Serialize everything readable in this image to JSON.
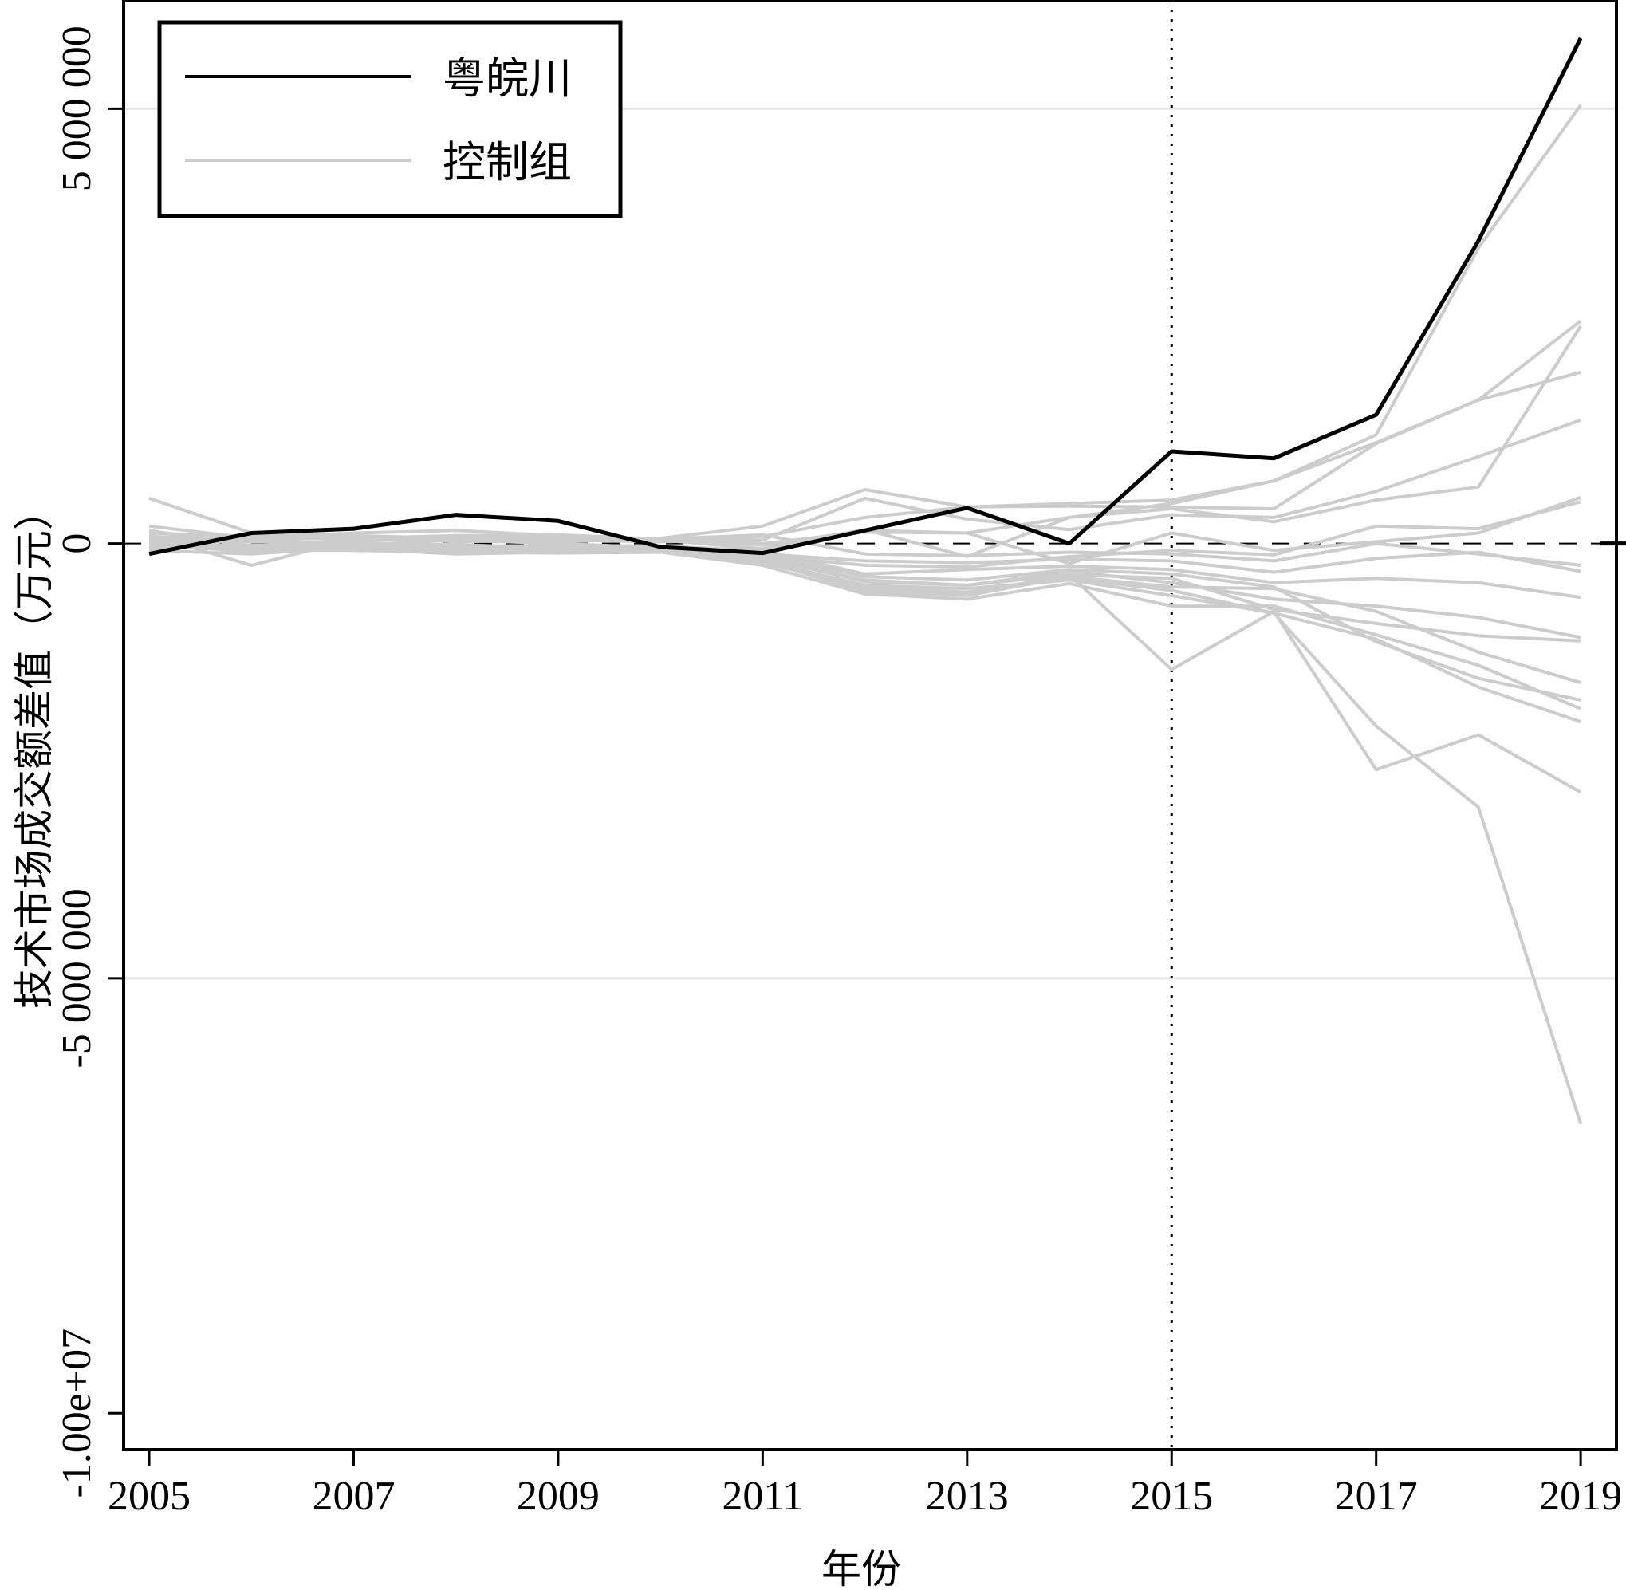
{
  "chart_data": {
    "type": "line",
    "xlabel": "年份",
    "ylabel": "技术市场成交额差值（万元）",
    "x_ticks": [
      "2005",
      "2007",
      "2009",
      "2011",
      "2013",
      "2015",
      "2017",
      "2019"
    ],
    "y_ticks": [
      {
        "value": 5000000,
        "label": "5 000 000"
      },
      {
        "value": 0,
        "label": "0"
      },
      {
        "value": -5000000,
        "label": "-5 000 000"
      },
      {
        "value": -10000000,
        "label": "-1.00e+07"
      }
    ],
    "xlim": [
      2004.75,
      2019.35
    ],
    "ylim": [
      -10420000,
      6250000
    ],
    "grid_y": [
      5000000,
      -5000000
    ],
    "reference_line_y": 0,
    "vertical_line_x": 2015,
    "legend": {
      "placement": "top-left",
      "entries": [
        {
          "label": "粤皖川",
          "color": "#000000"
        },
        {
          "label": "控制组",
          "color": "#cccccc"
        }
      ]
    },
    "x": [
      2005,
      2006,
      2007,
      2008,
      2009,
      2010,
      2011,
      2012,
      2013,
      2014,
      2015,
      2016,
      2017,
      2018,
      2019
    ],
    "series": [
      {
        "name": "粤皖川",
        "role": "treated",
        "values": [
          -120000,
          120000,
          170000,
          330000,
          260000,
          -40000,
          -110000,
          150000,
          410000,
          0,
          1060000,
          980000,
          1480000,
          3480000,
          5810000
        ]
      },
      {
        "name": "控制组",
        "role": "control",
        "values": [
          520000,
          120000,
          90000,
          60000,
          40000,
          60000,
          200000,
          620000,
          420000,
          460000,
          500000,
          720000,
          1250000,
          3400000,
          5040000
        ]
      },
      {
        "name": "控制组",
        "role": "control",
        "values": [
          100000,
          -250000,
          50000,
          80000,
          60000,
          30000,
          80000,
          300000,
          420000,
          430000,
          420000,
          400000,
          1150000,
          1650000,
          2560000
        ]
      },
      {
        "name": "控制组",
        "role": "control",
        "values": [
          200000,
          60000,
          120000,
          150000,
          90000,
          40000,
          0,
          130000,
          120000,
          300000,
          460000,
          720000,
          1160000,
          1650000,
          1970000
        ]
      },
      {
        "name": "控制组",
        "role": "control",
        "values": [
          -50000,
          100000,
          80000,
          20000,
          40000,
          20000,
          40000,
          520000,
          280000,
          160000,
          330000,
          300000,
          600000,
          1000000,
          1420000
        ]
      },
      {
        "name": "控制组",
        "role": "control",
        "values": [
          150000,
          -30000,
          40000,
          60000,
          80000,
          40000,
          -60000,
          160000,
          -150000,
          300000,
          400000,
          250000,
          500000,
          650000,
          2500000
        ]
      },
      {
        "name": "控制组",
        "role": "control",
        "values": [
          80000,
          50000,
          60000,
          30000,
          20000,
          60000,
          -20000,
          150000,
          120000,
          -230000,
          120000,
          -80000,
          20000,
          120000,
          530000
        ]
      },
      {
        "name": "控制组",
        "role": "control",
        "values": [
          -60000,
          -20000,
          -20000,
          40000,
          0,
          -50000,
          -140000,
          -250000,
          -270000,
          -150000,
          -80000,
          -130000,
          200000,
          170000,
          480000
        ]
      },
      {
        "name": "控制组",
        "role": "control",
        "values": [
          120000,
          80000,
          60000,
          90000,
          100000,
          50000,
          100000,
          -120000,
          -140000,
          -100000,
          -120000,
          -200000,
          0,
          -120000,
          -250000
        ]
      },
      {
        "name": "控制组",
        "role": "control",
        "values": [
          40000,
          -40000,
          20000,
          -50000,
          -70000,
          -50000,
          -120000,
          -200000,
          -220000,
          -180000,
          -200000,
          -330000,
          -170000,
          -100000,
          -320000
        ]
      },
      {
        "name": "控制组",
        "role": "control",
        "values": [
          0,
          -100000,
          -60000,
          -40000,
          -20000,
          -30000,
          -80000,
          -350000,
          -300000,
          -260000,
          -300000,
          -450000,
          -400000,
          -450000,
          -620000
        ]
      },
      {
        "name": "控制组",
        "role": "control",
        "values": [
          -80000,
          -120000,
          -40000,
          -80000,
          -90000,
          -60000,
          -150000,
          -420000,
          -480000,
          -320000,
          -450000,
          -640000,
          -720000,
          -850000,
          -1080000
        ]
      },
      {
        "name": "控制组",
        "role": "control",
        "values": [
          50000,
          60000,
          -30000,
          -10000,
          -60000,
          -80000,
          -180000,
          -520000,
          -580000,
          -360000,
          -400000,
          -760000,
          -920000,
          -1060000,
          -1120000
        ]
      },
      {
        "name": "控制组",
        "role": "control",
        "values": [
          -20000,
          -60000,
          -60000,
          -120000,
          -100000,
          -90000,
          -200000,
          -550000,
          -600000,
          -380000,
          -500000,
          -520000,
          -780000,
          -1250000,
          -1600000
        ]
      },
      {
        "name": "控制组",
        "role": "control",
        "values": [
          -30000,
          -80000,
          -80000,
          -100000,
          -110000,
          -100000,
          -250000,
          -580000,
          -640000,
          -460000,
          -720000,
          -720000,
          -1050000,
          -1400000,
          -1900000
        ]
      },
      {
        "name": "控制组",
        "role": "control",
        "values": [
          0,
          -30000,
          -50000,
          -60000,
          -80000,
          -70000,
          -220000,
          -500000,
          -560000,
          -400000,
          -540000,
          -800000,
          -1100000,
          -1650000,
          -2050000
        ]
      },
      {
        "name": "控制组",
        "role": "control",
        "values": [
          30000,
          20000,
          10000,
          -20000,
          -40000,
          -40000,
          -120000,
          -380000,
          -420000,
          -300000,
          -350000,
          -500000,
          -1130000,
          -1550000,
          -1800000
        ]
      },
      {
        "name": "控制组",
        "role": "control",
        "values": [
          10000,
          -40000,
          -20000,
          -50000,
          -60000,
          -60000,
          -160000,
          -440000,
          -480000,
          -360000,
          -1450000,
          -780000,
          -2600000,
          -2200000,
          -2860000
        ]
      },
      {
        "name": "控制组",
        "role": "control",
        "values": [
          -10000,
          -20000,
          -40000,
          -70000,
          -70000,
          -80000,
          -200000,
          -480000,
          -520000,
          -420000,
          -600000,
          -800000,
          -2100000,
          -3030000,
          -6670000
        ]
      }
    ]
  }
}
